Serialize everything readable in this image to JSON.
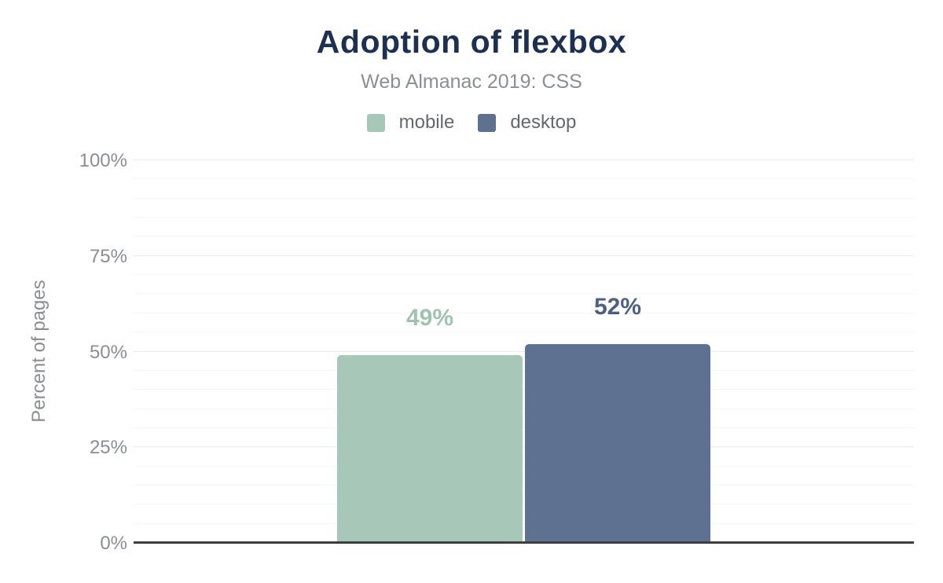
{
  "chart_data": {
    "type": "bar",
    "title": "Adoption of flexbox",
    "subtitle": "Web Almanac 2019: CSS",
    "ylabel": "Percent of pages",
    "ylim": [
      0,
      100
    ],
    "grid": true,
    "legend_position": "top",
    "minor_gridline_step": 5,
    "major_gridline_step": 25,
    "categories": [
      "mobile",
      "desktop"
    ],
    "series": [
      {
        "name": "mobile",
        "value": 49,
        "label": "49%",
        "color": "#a7c8b8",
        "label_color": "#a0c3b0"
      },
      {
        "name": "desktop",
        "value": 52,
        "label": "52%",
        "color": "#5f7190",
        "label_color": "#4d6080"
      }
    ],
    "yticks": [
      {
        "value": 0,
        "label": "0%"
      },
      {
        "value": 25,
        "label": "25%"
      },
      {
        "value": 50,
        "label": "50%"
      },
      {
        "value": 75,
        "label": "75%"
      },
      {
        "value": 100,
        "label": "100%"
      }
    ],
    "style": {
      "background": "#ffffff",
      "title_color": "#1e3050",
      "subtitle_color": "#8b8f94",
      "axis_text_color": "#8a8e93",
      "legend_text_color": "#64686d",
      "baseline_color": "#3e3e3e",
      "grid_minor": "#f6f6f6",
      "grid_major": "#ebebeb"
    }
  }
}
